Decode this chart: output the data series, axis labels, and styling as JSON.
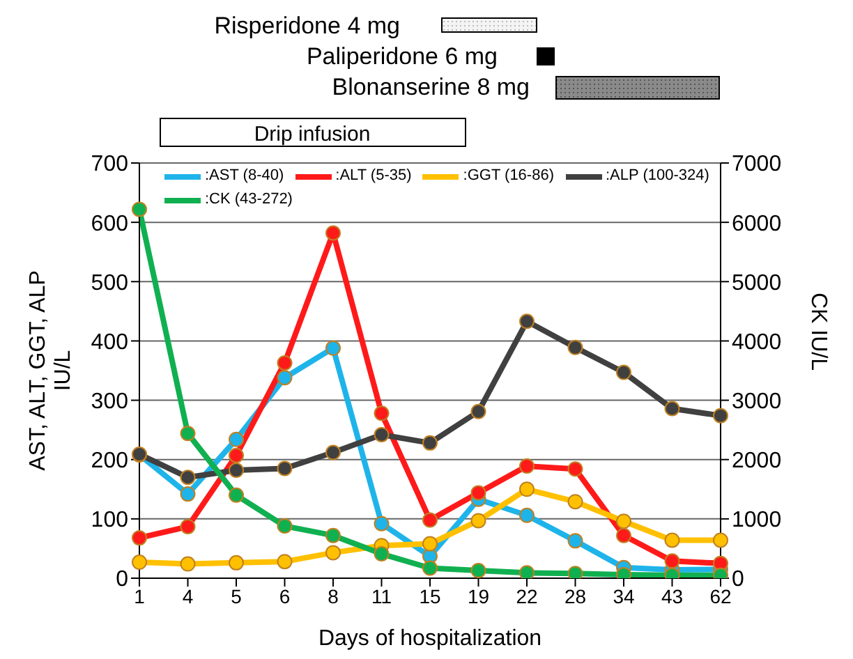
{
  "chart_data": {
    "type": "line",
    "xlabel": "Days of hospitalization",
    "ylabel": "AST, ALT, GGT, ALP\nIU/L",
    "y2label": "CK IU/L",
    "categories": [
      "1",
      "4",
      "5",
      "6",
      "8",
      "11",
      "15",
      "19",
      "22",
      "28",
      "34",
      "43",
      "62"
    ],
    "series": [
      {
        "name": ":AST (8-40)",
        "color": "#1eb4ea",
        "values": [
          208,
          142,
          234,
          338,
          388,
          92,
          37,
          133,
          106,
          63,
          18,
          14,
          15
        ]
      },
      {
        "name": ":ALT (5-35)",
        "color": "#ff1a1a",
        "values": [
          68,
          87,
          207,
          363,
          582,
          278,
          98,
          144,
          189,
          184,
          72,
          29,
          25
        ]
      },
      {
        "name": ":GGT (16-86)",
        "color": "#ffc000",
        "values": [
          27,
          24,
          26,
          28,
          43,
          55,
          58,
          97,
          150,
          129,
          96,
          64,
          64
        ]
      },
      {
        "name": ":ALP (100-324)",
        "color": "#404040",
        "values": [
          209,
          170,
          182,
          185,
          212,
          242,
          228,
          281,
          433,
          389,
          347,
          286,
          274
        ]
      },
      {
        "name": ":CK (43-272)",
        "color": "#10b050",
        "axis": "y2",
        "values": [
          6220,
          2440,
          1400,
          880,
          720,
          410,
          170,
          130,
          90,
          80,
          60,
          50,
          50
        ]
      }
    ],
    "ylim": [
      0,
      700
    ],
    "yticks": [
      0,
      100,
      200,
      300,
      400,
      500,
      600,
      700
    ],
    "y2lim": [
      0,
      7000
    ],
    "y2ticks": [
      0,
      1000,
      2000,
      3000,
      4000,
      5000,
      6000,
      7000
    ],
    "grid": "y",
    "legend": "top left",
    "marker": "circle",
    "line_style": "solid",
    "annotations": [
      "Risperidone 4 mg",
      "Paliperidone 6 mg",
      "Blonanserine 8 mg",
      "Drip infusion"
    ]
  }
}
